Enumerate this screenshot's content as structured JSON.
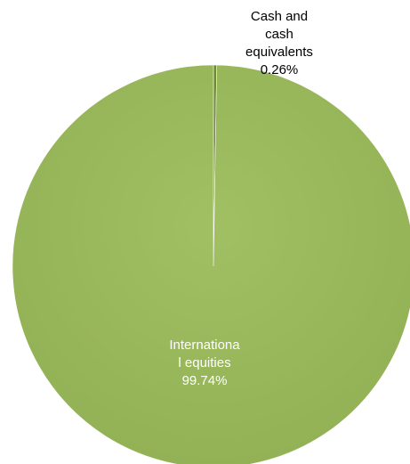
{
  "chart_data": {
    "type": "pie",
    "title": "",
    "slices": [
      {
        "label_lines": [
          "Cash and",
          "cash",
          "equivalents"
        ],
        "label": "Cash and cash equivalents",
        "value": 0.26,
        "value_label": "0.26%",
        "color": "#6b8e23",
        "label_color": "#000000"
      },
      {
        "label_lines": [
          "Internationa",
          "l equities"
        ],
        "label": "International equities",
        "value": 99.74,
        "value_label": "99.74%",
        "color": "#9bbb59",
        "label_color": "#ffffff"
      }
    ],
    "start_angle_deg": 0,
    "direction": "clockwise",
    "legend": "none"
  }
}
